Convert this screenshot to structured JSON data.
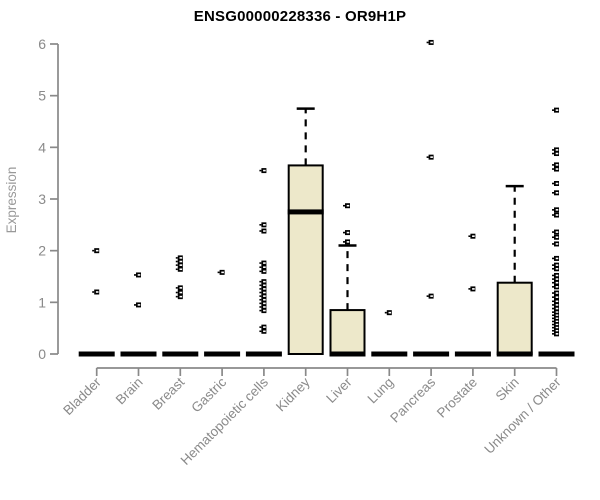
{
  "chart": {
    "title": "ENSG00000228336 - OR9H1P",
    "ylabel": "Expression"
  },
  "chart_data": {
    "type": "boxplot",
    "title": "ENSG00000228336 - OR9H1P",
    "xlabel": "",
    "ylabel": "Expression",
    "ylim": [
      0,
      6
    ],
    "yticks": [
      0,
      1,
      2,
      3,
      4,
      5,
      6
    ],
    "grid": false,
    "legend": "none",
    "colors": {
      "box_fill": "#EDE8CA",
      "box_stroke": "#000000",
      "median": "#000000",
      "outlier": "#000000",
      "axis": "#898989",
      "tick_label": "#8a8a8a",
      "axis_title": "#999999",
      "title": "#000000",
      "background": "#ffffff"
    },
    "categories": [
      "Bladder",
      "Brain",
      "Breast",
      "Gastric",
      "Hematopoietic cells",
      "Kidney",
      "Liver",
      "Lung",
      "Pancreas",
      "Prostate",
      "Skin",
      "Unknown / Other"
    ],
    "boxes": [
      {
        "category": "Bladder",
        "q1": 0,
        "median": 0,
        "q3": 0,
        "whisker_low": 0,
        "whisker_high": 0,
        "outliers": [
          2.0,
          1.2
        ]
      },
      {
        "category": "Brain",
        "q1": 0,
        "median": 0,
        "q3": 0,
        "whisker_low": 0,
        "whisker_high": 0,
        "outliers": [
          1.53,
          0.95
        ]
      },
      {
        "category": "Breast",
        "q1": 0,
        "median": 0,
        "q3": 0,
        "whisker_low": 0,
        "whisker_high": 0,
        "outliers": [
          1.86,
          1.79,
          1.72,
          1.64,
          1.28,
          1.19,
          1.11
        ]
      },
      {
        "category": "Gastric",
        "q1": 0,
        "median": 0,
        "q3": 0,
        "whisker_low": 0,
        "whisker_high": 0,
        "outliers": [
          1.58
        ]
      },
      {
        "category": "Hematopoietic cells",
        "q1": 0,
        "median": 0,
        "q3": 0,
        "whisker_low": 0,
        "whisker_high": 0,
        "outliers": [
          3.55,
          2.5,
          2.38,
          1.76,
          1.68,
          1.6,
          1.4,
          1.33,
          1.26,
          1.19,
          1.12,
          1.05,
          0.98,
          0.91,
          0.84,
          0.52,
          0.44
        ]
      },
      {
        "category": "Kidney",
        "q1": 0,
        "median": 2.75,
        "q3": 3.65,
        "whisker_low": 0,
        "whisker_high": 4.75,
        "outliers": []
      },
      {
        "category": "Liver",
        "q1": 0,
        "median": 0,
        "q3": 0.85,
        "whisker_low": 0,
        "whisker_high": 2.1,
        "outliers": [
          2.87,
          2.35,
          2.17
        ]
      },
      {
        "category": "Lung",
        "q1": 0,
        "median": 0,
        "q3": 0,
        "whisker_low": 0,
        "whisker_high": 0,
        "outliers": [
          0.8
        ]
      },
      {
        "category": "Pancreas",
        "q1": 0,
        "median": 0,
        "q3": 0,
        "whisker_low": 0,
        "whisker_high": 0,
        "outliers": [
          6.03,
          3.81,
          1.12
        ]
      },
      {
        "category": "Prostate",
        "q1": 0,
        "median": 0,
        "q3": 0,
        "whisker_low": 0,
        "whisker_high": 0,
        "outliers": [
          2.28,
          1.26
        ]
      },
      {
        "category": "Skin",
        "q1": 0,
        "median": 0,
        "q3": 1.38,
        "whisker_low": 0,
        "whisker_high": 3.25,
        "outliers": []
      },
      {
        "category": "Unknown / Other",
        "q1": 0,
        "median": 0,
        "q3": 0,
        "whisker_low": 0,
        "whisker_high": 0,
        "outliers": [
          4.72,
          3.95,
          3.88,
          3.66,
          3.58,
          3.3,
          3.12,
          2.79,
          2.69,
          2.36,
          2.26,
          2.13,
          1.85,
          1.72,
          1.65,
          1.52,
          1.45,
          1.38,
          1.3,
          1.18,
          1.1,
          1.02,
          0.95,
          0.88,
          0.81,
          0.75,
          0.69,
          0.63,
          0.57,
          0.51,
          0.45,
          0.39
        ]
      }
    ]
  }
}
